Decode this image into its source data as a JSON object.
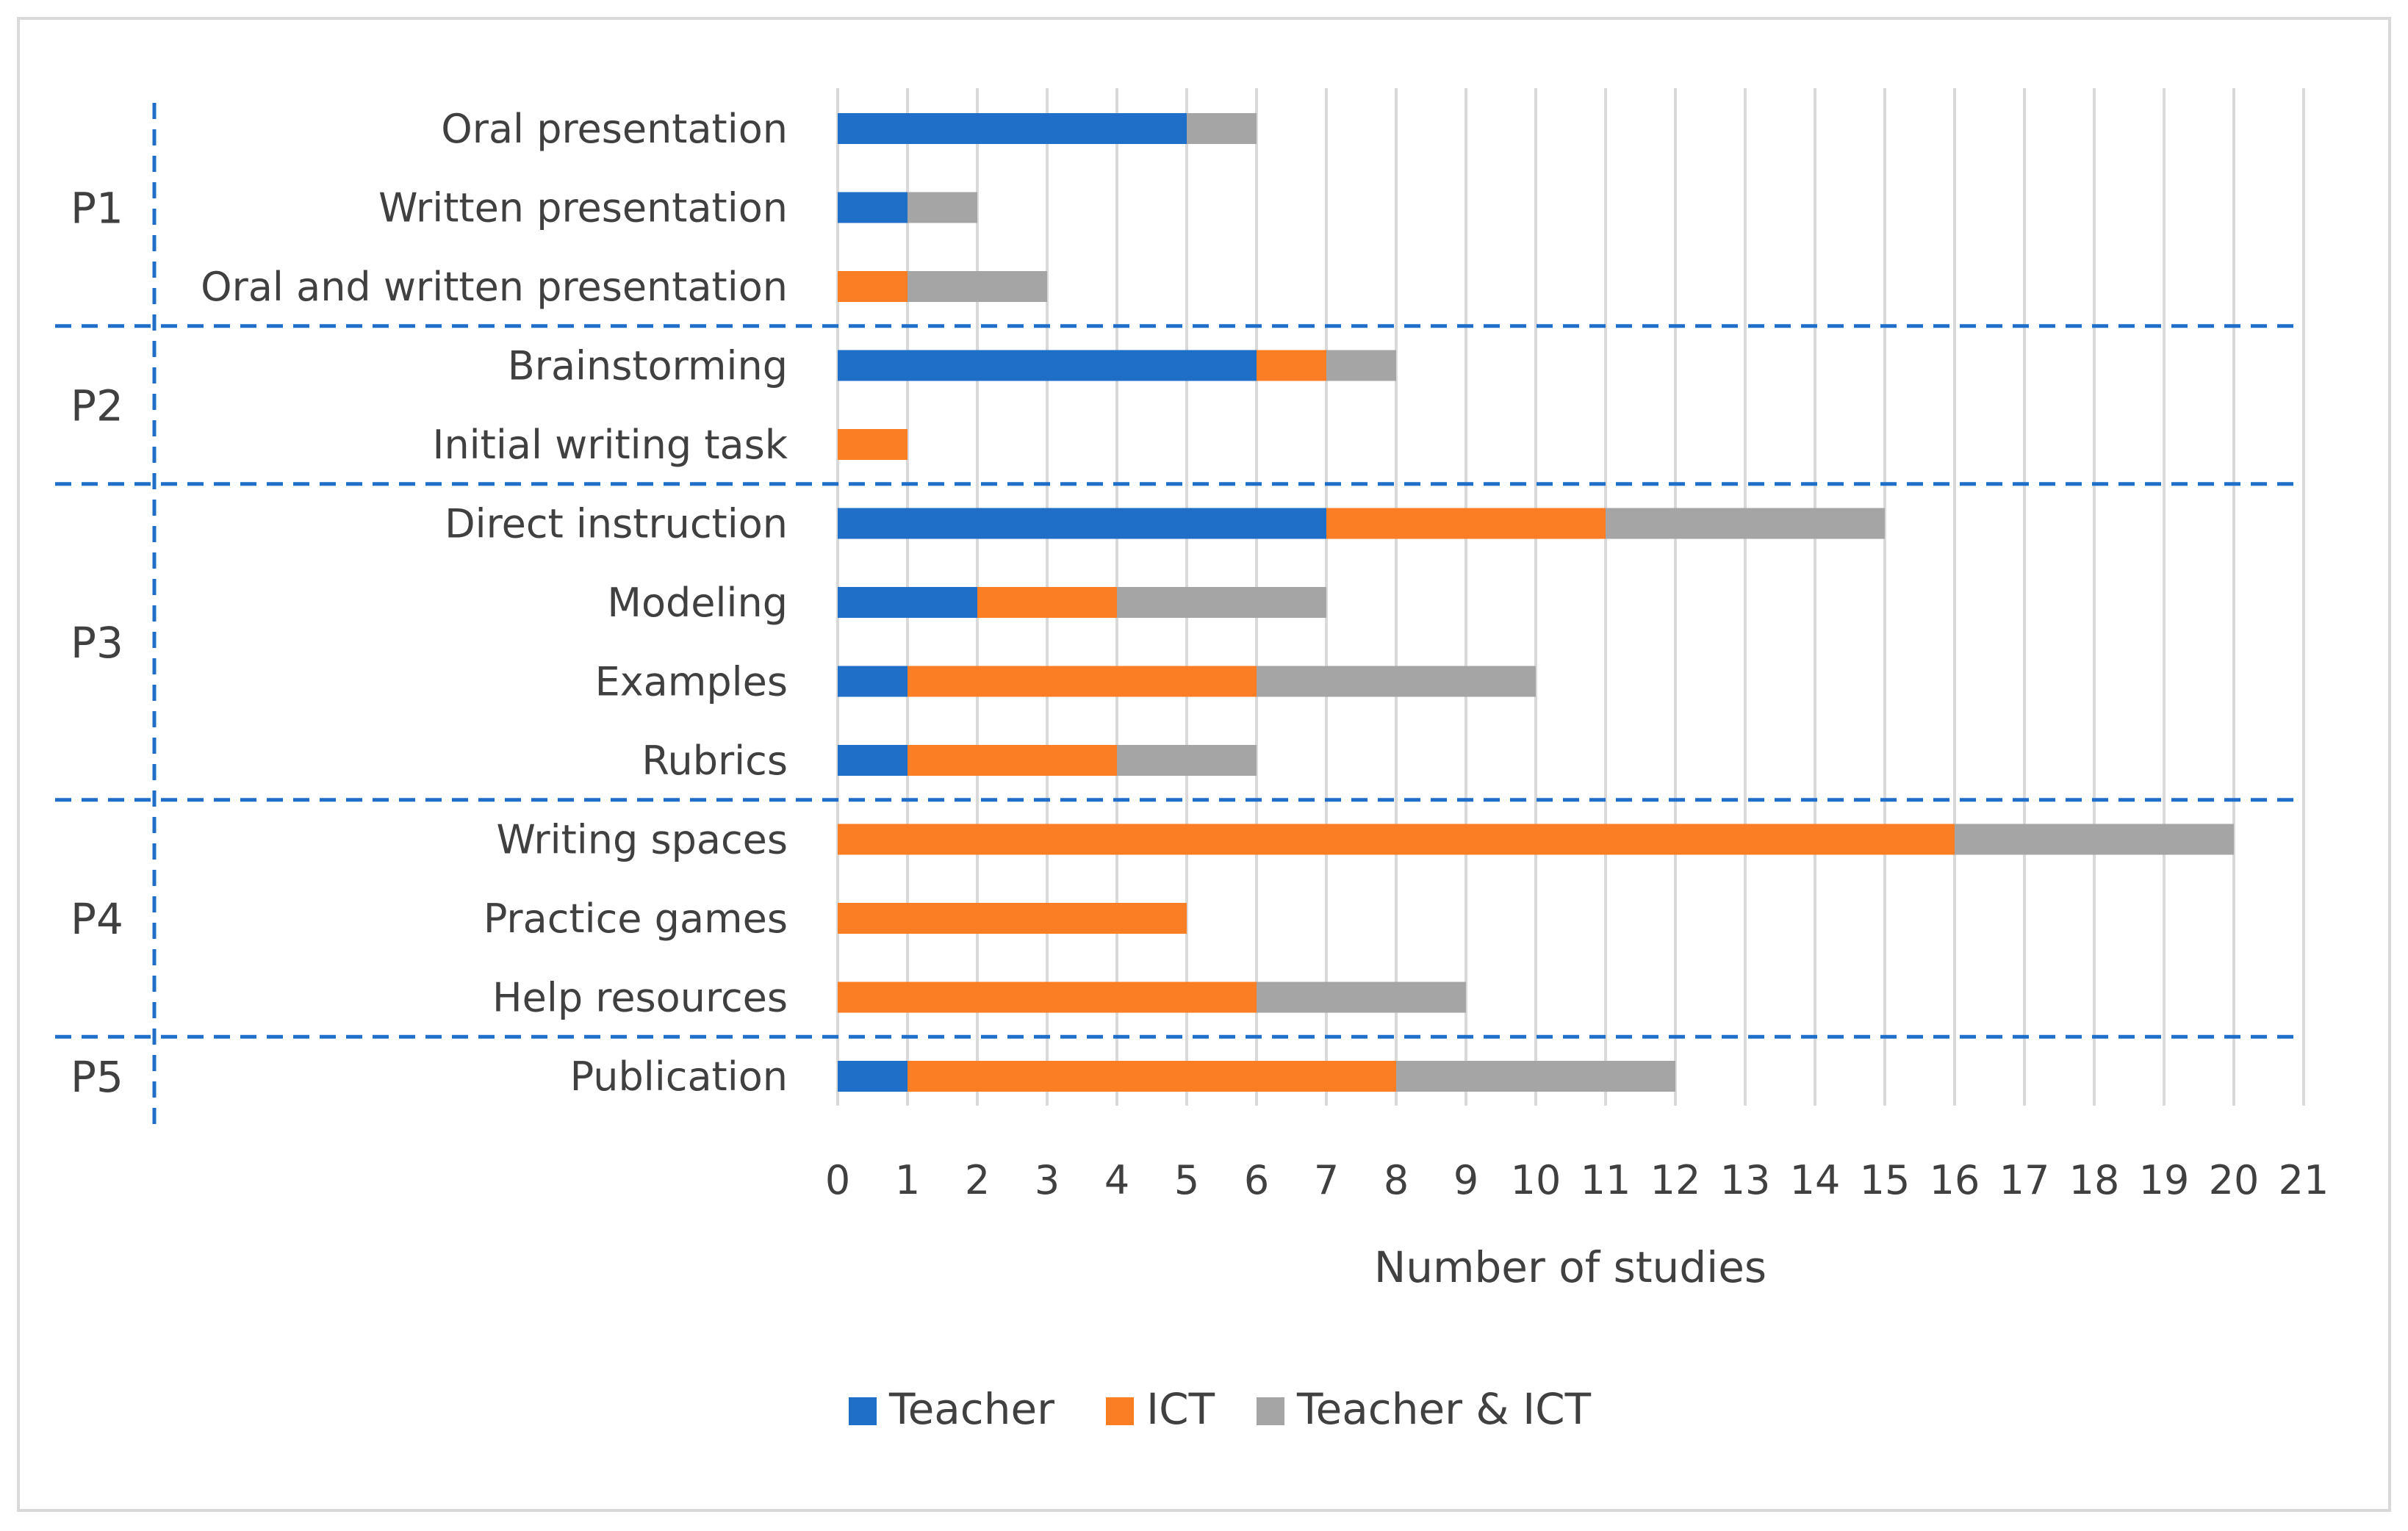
{
  "chart_data": {
    "type": "bar",
    "orientation": "horizontal",
    "stacked": true,
    "xlabel": "Number of studies",
    "xlim": [
      0,
      21
    ],
    "xticks": [
      "0",
      "1",
      "2",
      "3",
      "4",
      "5",
      "6",
      "7",
      "8",
      "9",
      "10",
      "11",
      "12",
      "13",
      "14",
      "15",
      "16",
      "17",
      "18",
      "19",
      "20",
      "21"
    ],
    "grid": "vertical",
    "legend_position": "bottom",
    "categories": [
      "Oral presentation",
      "Written presentation",
      "Oral and written presentation",
      "Brainstorming",
      "Initial writing task",
      "Direct instruction",
      "Modeling",
      "Examples",
      "Rubrics",
      "Writing spaces",
      "Practice games",
      "Help resources",
      "Publication"
    ],
    "series": [
      {
        "name": "Teacher",
        "color": "#1f6fc8",
        "values": [
          5,
          1,
          0,
          6,
          0,
          7,
          2,
          1,
          1,
          0,
          0,
          0,
          1
        ]
      },
      {
        "name": "ICT",
        "color": "#fb7d24",
        "values": [
          0,
          0,
          1,
          1,
          1,
          4,
          2,
          5,
          3,
          16,
          5,
          6,
          7
        ]
      },
      {
        "name": "Teacher & ICT",
        "color": "#a5a5a5",
        "values": [
          1,
          1,
          2,
          1,
          0,
          4,
          3,
          4,
          2,
          4,
          0,
          3,
          4
        ]
      }
    ],
    "groups": [
      {
        "label": "P1",
        "start": 0,
        "end": 2
      },
      {
        "label": "P2",
        "start": 3,
        "end": 4
      },
      {
        "label": "P3",
        "start": 5,
        "end": 8
      },
      {
        "label": "P4",
        "start": 9,
        "end": 11
      },
      {
        "label": "P5",
        "start": 12,
        "end": 12
      }
    ]
  }
}
